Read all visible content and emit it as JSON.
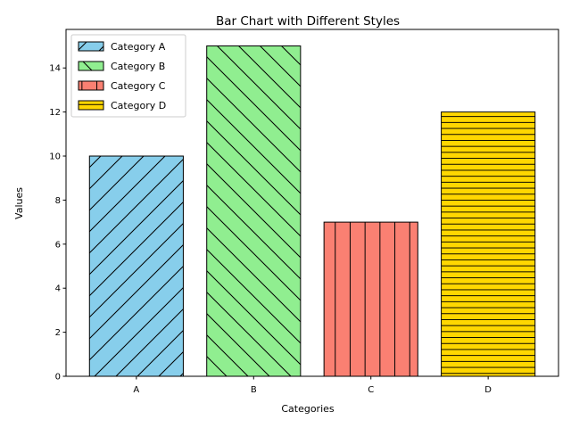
{
  "chart_data": {
    "type": "bar",
    "title": "Bar Chart with Different Styles",
    "xlabel": "Categories",
    "ylabel": "Values",
    "categories": [
      "A",
      "B",
      "C",
      "D"
    ],
    "values": [
      10,
      15,
      7,
      12
    ],
    "ylim": [
      0,
      15.75
    ],
    "yticks": [
      0,
      2,
      4,
      6,
      8,
      10,
      12,
      14
    ],
    "grid": false,
    "legend_position": "top-left",
    "series": [
      {
        "name": "Category A",
        "category": "A",
        "value": 10,
        "color": "#87CEEB",
        "hatch": "forward-diagonal"
      },
      {
        "name": "Category B",
        "category": "B",
        "value": 15,
        "color": "#90EE90",
        "hatch": "back-diagonal"
      },
      {
        "name": "Category C",
        "category": "C",
        "value": 7,
        "color": "#FA8072",
        "hatch": "vertical"
      },
      {
        "name": "Category D",
        "category": "D",
        "value": 12,
        "color": "#FFD700",
        "hatch": "horizontal"
      }
    ]
  }
}
